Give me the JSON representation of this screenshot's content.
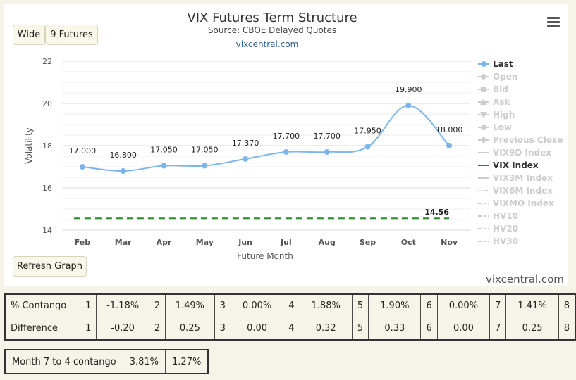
{
  "chart_data": {
    "type": "line",
    "title": "VIX Futures Term Structure",
    "subtitle": "Source: CBOE Delayed Quotes",
    "credit_link": "vixcentral.com",
    "xlabel": "Future Month",
    "ylabel": "Volatility",
    "categories": [
      "Feb",
      "Mar",
      "Apr",
      "May",
      "Jun",
      "Jul",
      "Aug",
      "Sep",
      "Oct",
      "Nov"
    ],
    "ylim": [
      14,
      22
    ],
    "yticks": [
      14,
      16,
      18,
      20,
      22
    ],
    "grid": true,
    "legend_position": "right",
    "series": [
      {
        "name": "Last",
        "color": "#7cb5ec",
        "values": [
          17.0,
          16.8,
          17.05,
          17.05,
          17.37,
          17.7,
          17.7,
          17.95,
          19.9,
          18.0
        ],
        "labels": [
          "17.000",
          "16.800",
          "17.050",
          "17.050",
          "17.370",
          "17.700",
          "17.700",
          "17.950",
          "19.900",
          "18.000"
        ]
      },
      {
        "name": "VIX Index",
        "color": "#2a8a2a",
        "values": [
          14.56,
          14.56,
          14.56,
          14.56,
          14.56,
          14.56,
          14.56,
          14.56,
          14.56,
          14.56
        ],
        "end_label": "14.56"
      }
    ],
    "legend": [
      {
        "name": "Last",
        "active": true,
        "symbol": "circle",
        "color": "#7cb5ec"
      },
      {
        "name": "Open",
        "active": false,
        "symbol": "diamond",
        "color": "#cccccc"
      },
      {
        "name": "Bid",
        "active": false,
        "symbol": "square",
        "color": "#cccccc"
      },
      {
        "name": "Ask",
        "active": false,
        "symbol": "triangle",
        "color": "#cccccc"
      },
      {
        "name": "High",
        "active": false,
        "symbol": "triangle-down",
        "color": "#cccccc"
      },
      {
        "name": "Low",
        "active": false,
        "symbol": "circle",
        "color": "#cccccc"
      },
      {
        "name": "Previous Close",
        "active": false,
        "symbol": "diamond",
        "color": "#cccccc"
      },
      {
        "name": "VIX9D Index",
        "active": false,
        "symbol": "line",
        "color": "#cccccc"
      },
      {
        "name": "VIX Index",
        "active": true,
        "symbol": "line",
        "color": "#2a8a2a"
      },
      {
        "name": "VIX3M Index",
        "active": false,
        "symbol": "line",
        "color": "#cccccc"
      },
      {
        "name": "VIX6M Index",
        "active": false,
        "symbol": "dotted",
        "color": "#cccccc"
      },
      {
        "name": "VIXMO Index",
        "active": false,
        "symbol": "dashdot",
        "color": "#cccccc"
      },
      {
        "name": "HV10",
        "active": false,
        "symbol": "dashdot",
        "color": "#cccccc"
      },
      {
        "name": "HV20",
        "active": false,
        "symbol": "dashdot",
        "color": "#cccccc"
      },
      {
        "name": "HV30",
        "active": false,
        "symbol": "dashdot",
        "color": "#cccccc"
      }
    ]
  },
  "buttons": {
    "wide": "Wide",
    "futures": "9 Futures",
    "refresh": "Refresh Graph"
  },
  "brand": "vixcentral.com",
  "contango_table": {
    "row1_label": "% Contango",
    "row2_label": "Difference",
    "months": [
      "1",
      "2",
      "3",
      "4",
      "5",
      "6",
      "7",
      "8"
    ],
    "contango": [
      "-1.18%",
      "1.49%",
      "0.00%",
      "1.88%",
      "1.90%",
      "0.00%",
      "1.41%"
    ],
    "difference": [
      "-0.20",
      "0.25",
      "0.00",
      "0.32",
      "0.33",
      "0.00",
      "0.25"
    ]
  },
  "m74_table": {
    "label": "Month 7 to 4 contango",
    "value1": "3.81%",
    "value2": "1.27%"
  }
}
